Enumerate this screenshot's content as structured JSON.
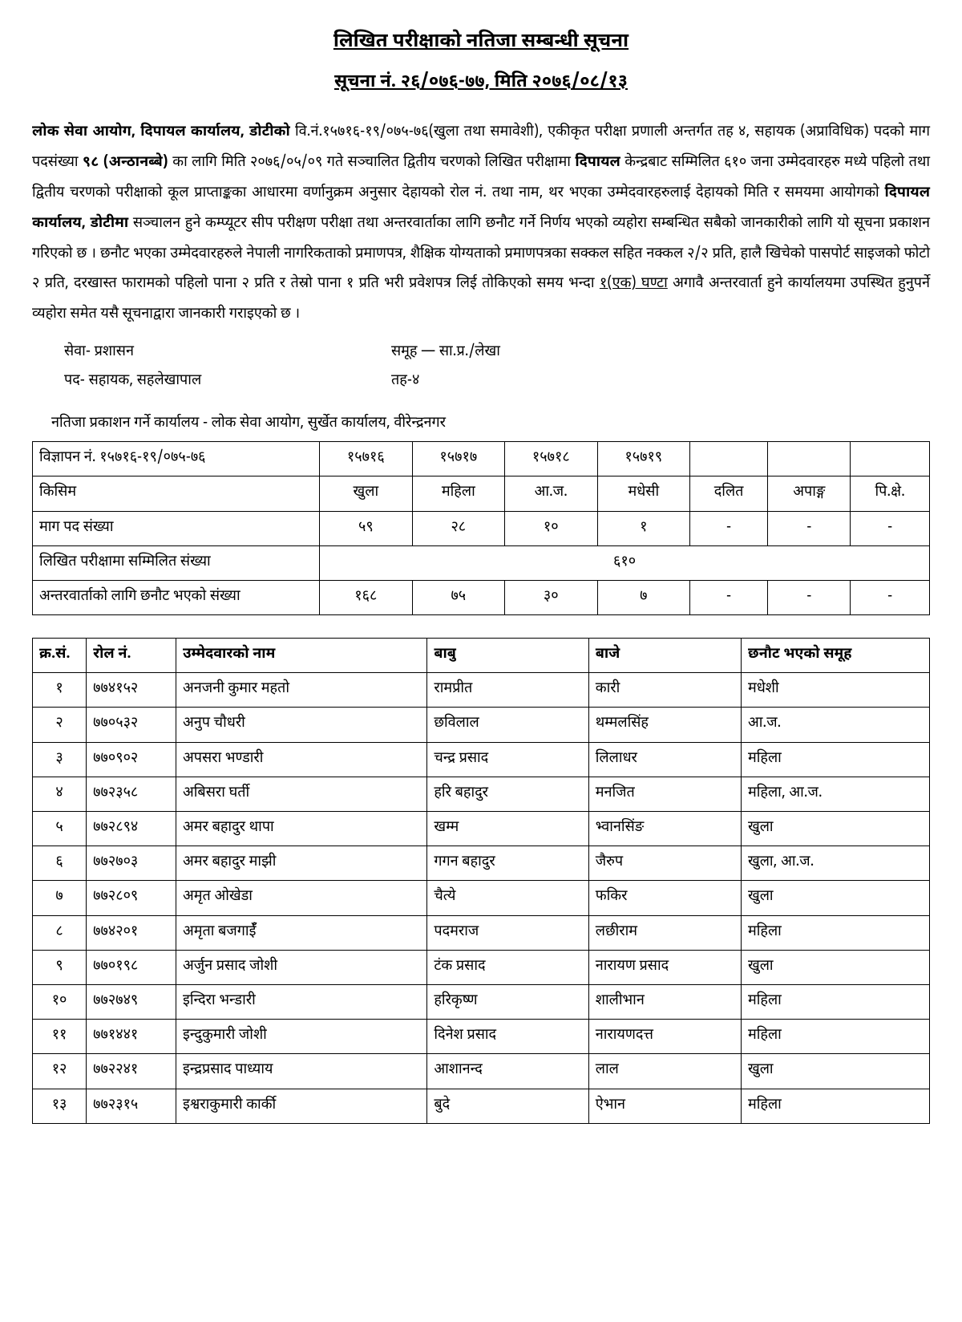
{
  "header": {
    "title": "लिखित परीक्षाको नतिजा सम्बन्धी सूचना",
    "subtitle": "सूचना नं. २६/०७६-७७, मिति २०७६/०८/१३"
  },
  "notice": {
    "org_bold": "लोक सेवा आयोग, दिपायल कार्यालय, डोटीको",
    "text_a": " वि.नं.१५७१६-१९/०७५-७६(खुला तथा समावेशी), एकीकृत परीक्षा प्रणाली अन्तर्गत तह ४, सहायक (अप्राविधिक) पदको माग पदसंख्या ",
    "count_bold": "९८ (अन्ठानब्बे)",
    "text_b": " का लागि मिति २०७६/०५/०९ गते सञ्चालित द्वितीय चरणको लिखित परीक्षामा ",
    "center_bold": "दिपायल",
    "text_c": " केन्द्रबाट सम्मिलित ६१० जना उम्मेदवारहरु मध्ये पहिलो तथा द्वितीय चरणको परीक्षाको कूल प्राप्ताङ्कका आधारमा वर्णानुक्रम अनुसार देहायको रोल नं. तथा नाम, थर भएका उम्मेदवारहरुलाई देहायको मिति र समयमा आयोगको ",
    "office_bold": "दिपायल कार्यालय, डोटीमा",
    "text_d": " सञ्चालन हुने कम्प्यूटर सीप परीक्षण परीक्षा तथा अन्तरवार्ताका लागि छनौट गर्ने निर्णय भएको व्यहोरा सम्बन्धित सबैको जानकारीको लागि यो सूचना प्रकाशन गरिएको छ । छनौट भएका उम्मेदवारहरुले नेपाली नागरिकताको प्रमाणपत्र, शैक्षिक योग्यताको प्रमाणपत्रका सक्कल सहित नक्कल २/२ प्रति, हालै खिचेको पासपोर्ट साइजको फोटो २ प्रति, दरखास्त फारामको पहिलो पाना २ प्रति र तेस्रो पाना १ प्रति भरी प्रवेशपत्र लिई तोकिएको समय भन्दा ",
    "deadline_u": "१(एक) घण्टा",
    "text_e": " अगावै अन्तरवार्ता हुने कार्यालयमा उपस्थित हुनुपर्ने व्यहोरा समेत यसै सूचनाद्वारा जानकारी गराइएको छ ।"
  },
  "meta": {
    "service": "सेवा- प्रशासन",
    "group": "समूह — सा.प्र./लेखा",
    "post": "पद- सहायक, सहलेखापाल",
    "level": "तह-४"
  },
  "pub_office": "नतिजा प्रकाशन गर्ने कार्यालय - लोक सेवा आयोग, सुर्खेत कार्यालय, वीरेन्द्रनगर",
  "summary": {
    "row1_label": "विज्ञापन नं. १५७१६-१९/०७५-७६",
    "row1": [
      "१५७१६",
      "१५७१७",
      "१५७१८",
      "१५७१९",
      "",
      "",
      ""
    ],
    "row2_label": "किसिम",
    "row2": [
      "खुला",
      "महिला",
      "आ.ज.",
      "मधेसी",
      "दलित",
      "अपाङ्ग",
      "पि.क्षे."
    ],
    "row3_label": "माग पद संख्या",
    "row3": [
      "५९",
      "२८",
      "१०",
      "१",
      "-",
      "-",
      "-"
    ],
    "row4_label": "लिखित परीक्षामा सम्मिलित संख्या",
    "row4_merged": "६१०",
    "row5_label": "अन्तरवार्ताको लागि छनौट भएको संख्या",
    "row5": [
      "१६८",
      "७५",
      "३०",
      "७",
      "-",
      "-",
      "-"
    ]
  },
  "cand": {
    "headers": [
      "क्र.सं.",
      "रोल नं.",
      "उम्मेदवारको नाम",
      "बाबु",
      "बाजे",
      "छनौट भएको समूह"
    ],
    "rows": [
      [
        "१",
        "७७४१५२",
        "अनजनी कुमार महतो",
        "रामप्रीत",
        "कारी",
        "मधेशी"
      ],
      [
        "२",
        "७७०५३२",
        "अनुप चौधरी",
        "छविलाल",
        "थम्मलसिंह",
        "आ.ज."
      ],
      [
        "३",
        "७७०९०२",
        "अपसरा भण्डारी",
        "चन्द्र प्रसाद",
        "लिलाधर",
        "महिला"
      ],
      [
        "४",
        "७७२३५८",
        "अबिसरा घर्ती",
        "हरि बहादुर",
        "मनजित",
        "महिला, आ.ज."
      ],
      [
        "५",
        "७७२८९४",
        "अमर बहादुर थापा",
        "खम्म",
        "भ्वानसिंङ",
        "खुला"
      ],
      [
        "६",
        "७७२७०३",
        "अमर बहादुर माझी",
        "गगन बहादुर",
        "जैरुप",
        "खुला, आ.ज."
      ],
      [
        "७",
        "७७२८०९",
        "अमृत ओखेडा",
        "चैत्ये",
        "फकिर",
        "खुला"
      ],
      [
        "८",
        "७७४२०१",
        "अमृता बजगाईँ",
        "पदमराज",
        "लछीराम",
        "महिला"
      ],
      [
        "९",
        "७७०१९८",
        "अर्जुन प्रसाद जोशी",
        "टंक प्रसाद",
        "नारायण प्रसाद",
        "खुला"
      ],
      [
        "१०",
        "७७२७४९",
        "इन्दिरा भन्डारी",
        "हरिकृष्ण",
        "शालीभान",
        "महिला"
      ],
      [
        "११",
        "७७१४४१",
        "इन्दुकुमारी जोशी",
        "दिनेश प्रसाद",
        "नारायणदत्त",
        "महिला"
      ],
      [
        "१२",
        "७७२२४१",
        "इन्द्रप्रसाद पाध्याय",
        "आशानन्द",
        "लाल",
        "खुला"
      ],
      [
        "१३",
        "७७२३१५",
        "इश्वराकुमारी कार्की",
        "बुदे",
        "ऐभान",
        "महिला"
      ]
    ]
  }
}
